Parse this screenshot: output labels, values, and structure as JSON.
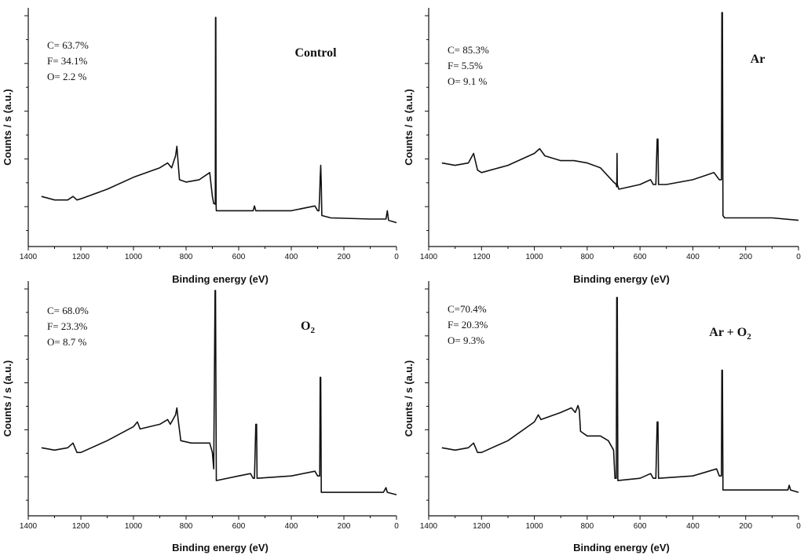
{
  "chart_data": [
    {
      "type": "line",
      "title": "Control",
      "xlabel": "Binding energy (eV)",
      "ylabel": "Counts / s (a.u.)",
      "xlim": [
        1400,
        0
      ],
      "ylim": [
        0,
        100
      ],
      "x_reversed": true,
      "xticks": [
        1400,
        1200,
        1000,
        800,
        600,
        400,
        200,
        0
      ],
      "grid": false,
      "annotations": [
        "C= 63.7%",
        "F= 34.1%",
        "O= 2.2 %"
      ],
      "series": [
        {
          "points": [
            [
              1350,
              21
            ],
            [
              1300,
              19.5
            ],
            [
              1250,
              19.5
            ],
            [
              1230,
              21
            ],
            [
              1215,
              19.5
            ],
            [
              1200,
              20
            ],
            [
              1100,
              24
            ],
            [
              1000,
              29
            ],
            [
              900,
              33
            ],
            [
              870,
              35
            ],
            [
              855,
              33
            ],
            [
              840,
              38
            ],
            [
              835,
              42
            ],
            [
              830,
              35
            ],
            [
              825,
              28
            ],
            [
              800,
              27
            ],
            [
              750,
              28
            ],
            [
              710,
              31
            ],
            [
              700,
              21
            ],
            [
              695,
              18
            ],
            [
              690,
              17.8
            ],
            [
              689,
              17.8
            ],
            [
              688,
              96
            ],
            [
              687,
              96
            ],
            [
              686,
              17.8
            ],
            [
              685,
              15
            ],
            [
              600,
              15
            ],
            [
              545,
              15
            ],
            [
              540,
              17
            ],
            [
              535,
              15
            ],
            [
              400,
              15
            ],
            [
              310,
              17
            ],
            [
              300,
              15
            ],
            [
              295,
              15
            ],
            [
              292,
              22
            ],
            [
              290,
              29
            ],
            [
              288,
              34
            ],
            [
              286,
              26
            ],
            [
              284,
              13
            ],
            [
              250,
              12
            ],
            [
              100,
              11.5
            ],
            [
              40,
              11.5
            ],
            [
              35,
              15
            ],
            [
              30,
              11
            ],
            [
              0,
              10
            ]
          ]
        }
      ]
    },
    {
      "type": "line",
      "title": "Ar",
      "xlabel": "Binding energy (eV)",
      "ylabel": "Counts / s (a.u.)",
      "xlim": [
        1400,
        0
      ],
      "ylim": [
        0,
        100
      ],
      "x_reversed": true,
      "xticks": [
        1400,
        1200,
        1000,
        800,
        600,
        400,
        200,
        0
      ],
      "grid": false,
      "annotations": [
        "C= 85.3%",
        "F= 5.5%",
        "O= 9.1 %"
      ],
      "series": [
        {
          "points": [
            [
              1350,
              35
            ],
            [
              1300,
              34
            ],
            [
              1250,
              35
            ],
            [
              1230,
              39
            ],
            [
              1215,
              32
            ],
            [
              1200,
              31
            ],
            [
              1100,
              34
            ],
            [
              1000,
              39
            ],
            [
              980,
              41
            ],
            [
              960,
              38
            ],
            [
              900,
              36
            ],
            [
              850,
              36
            ],
            [
              800,
              35
            ],
            [
              750,
              33
            ],
            [
              700,
              27
            ],
            [
              690,
              26
            ],
            [
              688,
              25
            ],
            [
              687,
              39
            ],
            [
              686,
              26
            ],
            [
              680,
              24
            ],
            [
              600,
              26
            ],
            [
              560,
              28
            ],
            [
              550,
              26
            ],
            [
              540,
              26
            ],
            [
              535,
              45
            ],
            [
              532,
              45
            ],
            [
              530,
              26
            ],
            [
              500,
              26
            ],
            [
              400,
              28
            ],
            [
              320,
              31
            ],
            [
              300,
              28
            ],
            [
              295,
              28
            ],
            [
              292,
              28
            ],
            [
              290,
              98
            ],
            [
              288,
              98
            ],
            [
              286,
              13
            ],
            [
              280,
              12
            ],
            [
              200,
              12
            ],
            [
              100,
              12
            ],
            [
              0,
              11
            ]
          ]
        }
      ]
    },
    {
      "type": "line",
      "title": "O2",
      "xlabel": "Binding energy (eV)",
      "ylabel": "Counts / s (a.u.)",
      "xlim": [
        1400,
        0
      ],
      "ylim": [
        0,
        100
      ],
      "x_reversed": true,
      "xticks": [
        1400,
        1200,
        1000,
        800,
        600,
        400,
        200,
        0
      ],
      "grid": false,
      "annotations": [
        "C= 68.0%",
        "F= 23.3%",
        "O= 8.7 %"
      ],
      "series": [
        {
          "points": [
            [
              1350,
              29
            ],
            [
              1300,
              28
            ],
            [
              1250,
              29
            ],
            [
              1230,
              31
            ],
            [
              1215,
              27
            ],
            [
              1200,
              27
            ],
            [
              1100,
              32
            ],
            [
              1000,
              38
            ],
            [
              985,
              40
            ],
            [
              975,
              37
            ],
            [
              900,
              39
            ],
            [
              870,
              41
            ],
            [
              860,
              39
            ],
            [
              840,
              43
            ],
            [
              835,
              46
            ],
            [
              830,
              41
            ],
            [
              820,
              32
            ],
            [
              780,
              31
            ],
            [
              710,
              31
            ],
            [
              700,
              27
            ],
            [
              695,
              20
            ],
            [
              690,
              96
            ],
            [
              688,
              96
            ],
            [
              685,
              15
            ],
            [
              600,
              17
            ],
            [
              555,
              18
            ],
            [
              545,
              16
            ],
            [
              540,
              16
            ],
            [
              535,
              39
            ],
            [
              532,
              39
            ],
            [
              530,
              16
            ],
            [
              400,
              17
            ],
            [
              310,
              19
            ],
            [
              300,
              17
            ],
            [
              292,
              17
            ],
            [
              290,
              59
            ],
            [
              288,
              59
            ],
            [
              286,
              10
            ],
            [
              280,
              10
            ],
            [
              200,
              10
            ],
            [
              50,
              10
            ],
            [
              40,
              12
            ],
            [
              35,
              10
            ],
            [
              0,
              9
            ]
          ]
        }
      ]
    },
    {
      "type": "line",
      "title": "Ar + O2",
      "xlabel": "Binding energy (eV)",
      "ylabel": "Counts / s (a.u.)",
      "xlim": [
        1400,
        0
      ],
      "ylim": [
        0,
        100
      ],
      "x_reversed": true,
      "xticks": [
        1400,
        1200,
        1000,
        800,
        600,
        400,
        200,
        0
      ],
      "grid": false,
      "annotations": [
        "C=70.4%",
        "F= 20.3%",
        "O= 9.3%"
      ],
      "series": [
        {
          "points": [
            [
              1350,
              29
            ],
            [
              1300,
              28
            ],
            [
              1250,
              29
            ],
            [
              1230,
              31
            ],
            [
              1215,
              27
            ],
            [
              1200,
              27
            ],
            [
              1100,
              32
            ],
            [
              1000,
              40
            ],
            [
              985,
              43
            ],
            [
              975,
              41
            ],
            [
              900,
              44
            ],
            [
              860,
              46
            ],
            [
              845,
              44
            ],
            [
              835,
              47
            ],
            [
              830,
              45
            ],
            [
              825,
              36
            ],
            [
              800,
              34
            ],
            [
              750,
              34
            ],
            [
              720,
              32
            ],
            [
              700,
              28
            ],
            [
              695,
              16
            ],
            [
              690,
              16
            ],
            [
              688,
              93
            ],
            [
              686,
              93
            ],
            [
              684,
              15
            ],
            [
              600,
              16
            ],
            [
              560,
              18
            ],
            [
              550,
              16
            ],
            [
              540,
              16
            ],
            [
              535,
              40
            ],
            [
              532,
              40
            ],
            [
              530,
              16
            ],
            [
              400,
              17
            ],
            [
              310,
              20
            ],
            [
              300,
              17
            ],
            [
              292,
              17
            ],
            [
              290,
              62
            ],
            [
              288,
              62
            ],
            [
              286,
              11
            ],
            [
              250,
              11
            ],
            [
              100,
              11
            ],
            [
              40,
              11
            ],
            [
              35,
              13
            ],
            [
              30,
              11
            ],
            [
              0,
              10
            ]
          ]
        }
      ]
    }
  ],
  "panels": [
    {
      "title_main": "Control",
      "title_sub": "",
      "title_suffix": ""
    },
    {
      "title_main": "Ar",
      "title_sub": "",
      "title_suffix": ""
    },
    {
      "title_main": "O",
      "title_sub": "2",
      "title_suffix": ""
    },
    {
      "title_main": "Ar + O",
      "title_sub": "2",
      "title_suffix": ""
    }
  ]
}
